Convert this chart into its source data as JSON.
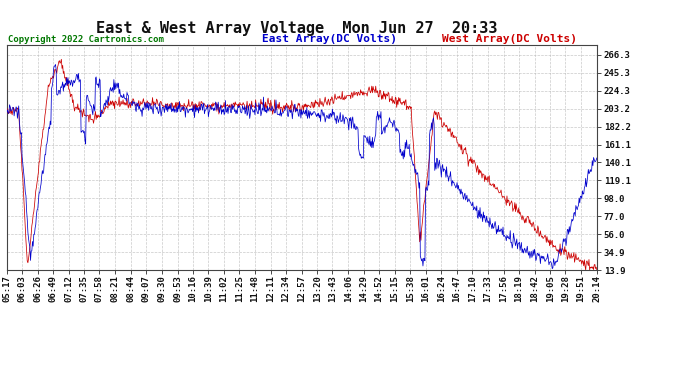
{
  "title": "East & West Array Voltage  Mon Jun 27  20:33",
  "copyright": "Copyright 2022 Cartronics.com",
  "legend_east": "East Array(DC Volts)",
  "legend_west": "West Array(DC Volts)",
  "east_color": "#0000cc",
  "west_color": "#cc0000",
  "bg_color": "#ffffff",
  "grid_color": "#bbbbbb",
  "yticks": [
    13.9,
    34.9,
    56.0,
    77.0,
    98.0,
    119.1,
    140.1,
    161.1,
    182.2,
    203.2,
    224.3,
    245.3,
    266.3
  ],
  "ymin": 13.9,
  "ymax": 278.0,
  "x_labels": [
    "05:17",
    "06:03",
    "06:26",
    "06:49",
    "07:12",
    "07:35",
    "07:58",
    "08:21",
    "08:44",
    "09:07",
    "09:30",
    "09:53",
    "10:16",
    "10:39",
    "11:02",
    "11:25",
    "11:48",
    "12:11",
    "12:34",
    "12:57",
    "13:20",
    "13:43",
    "14:06",
    "14:29",
    "14:52",
    "15:15",
    "15:38",
    "16:01",
    "16:24",
    "16:47",
    "17:10",
    "17:33",
    "17:56",
    "18:19",
    "18:42",
    "19:05",
    "19:28",
    "19:51",
    "20:14"
  ],
  "title_fontsize": 11,
  "tick_fontsize": 6.5,
  "copyright_fontsize": 6.5,
  "legend_fontsize": 8,
  "n_points": 900
}
